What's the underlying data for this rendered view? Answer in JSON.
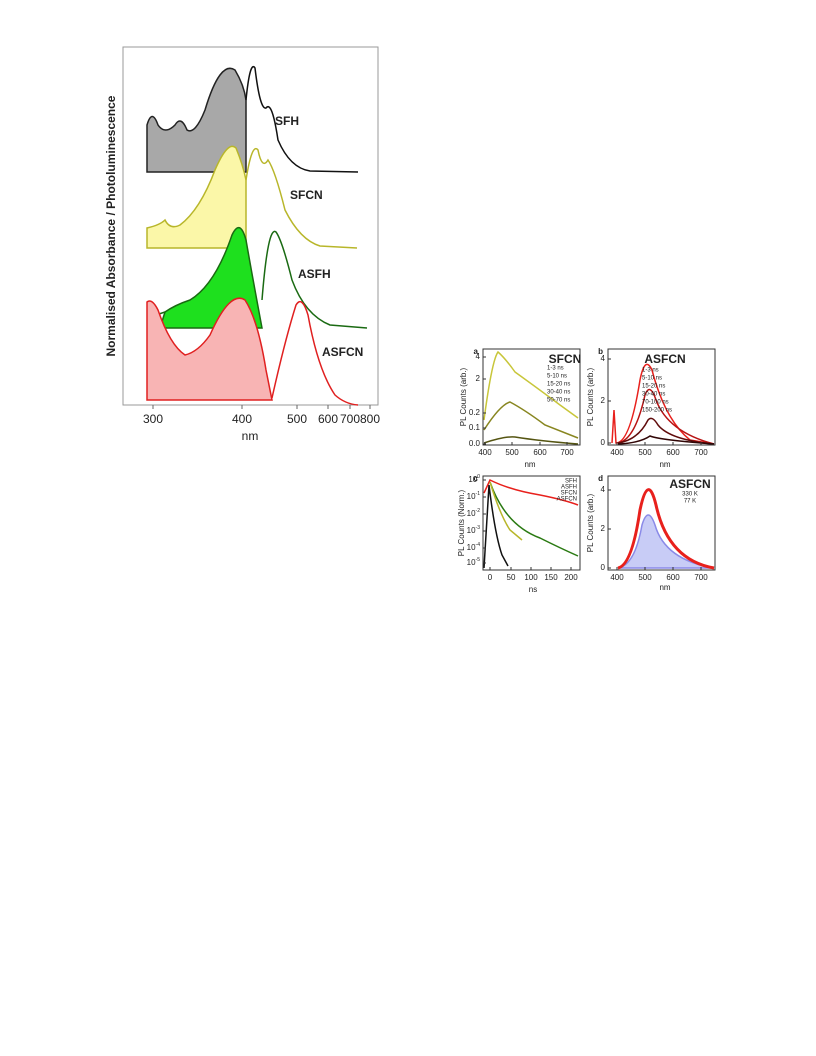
{
  "figure1": {
    "y_label": "Normalised Absorbance / Photoluminescence",
    "x_label": "nm",
    "x_ticks": [
      300,
      400,
      500,
      600,
      700,
      800
    ],
    "curve_labels": [
      "SFH",
      "SFCN",
      "ASFH",
      "ASFCN"
    ]
  },
  "figure2": {
    "panels": [
      {
        "letter": "a",
        "title": "SFCN",
        "title_color": "#b8b62a",
        "y_label": "PL Counts (arb.)",
        "x_label": "nm",
        "y_ticks": [
          4,
          2,
          0.2,
          0.1,
          "0.0"
        ],
        "x_ticks": [
          400,
          500,
          600,
          700
        ],
        "legend": [
          {
            "label": "1-3 ns",
            "color": "#c8c63a"
          },
          {
            "label": "5-10 ns",
            "color": "#a8a62a"
          },
          {
            "label": "15-20 ns",
            "color": "#888620"
          },
          {
            "label": "30-40 ns",
            "color": "#66651a"
          },
          {
            "label": "50-70 ns",
            "color": "#444412"
          }
        ]
      },
      {
        "letter": "b",
        "title": "ASFCN",
        "title_color": "#e8201c",
        "y_label": "PL Counts (arb.)",
        "x_label": "nm",
        "y_ticks": [
          4,
          2,
          0
        ],
        "x_ticks": [
          400,
          500,
          600,
          700
        ],
        "legend": [
          {
            "label": "1-3 ns",
            "color": "#e8201c"
          },
          {
            "label": "5-10 ns",
            "color": "#d01818"
          },
          {
            "label": "15-20 ns",
            "color": "#b81414"
          },
          {
            "label": "30-40 ns",
            "color": "#901010"
          },
          {
            "label": "70-100 ns",
            "color": "#600c0c"
          },
          {
            "label": "150-200 ns",
            "color": "#300606"
          }
        ]
      },
      {
        "letter": "c",
        "y_label": "PL Counts (Norm.)",
        "x_label": "ns",
        "y_ticks": [
          {
            "base": "10",
            "exponent": "0"
          },
          {
            "base": "10",
            "exponent": "-1"
          },
          {
            "base": "10",
            "exponent": "-2"
          },
          {
            "base": "10",
            "exponent": "-3"
          },
          {
            "base": "10",
            "exponent": "-4"
          },
          {
            "base": "10",
            "exponent": "-5"
          }
        ],
        "x_ticks": [
          0,
          50,
          100,
          150,
          200
        ],
        "legend": [
          {
            "label": "SFH",
            "color": "#111111"
          },
          {
            "label": "ASFH",
            "color": "#2a7a12"
          },
          {
            "label": "SFCN",
            "color": "#b8b62a"
          },
          {
            "label": "ASFCN",
            "color": "#e8201c"
          }
        ]
      },
      {
        "letter": "d",
        "title": "ASFCN",
        "title_color": "#e8201c",
        "y_label": "PL Counts (arb.)",
        "x_label": "nm",
        "y_ticks": [
          4,
          2,
          0
        ],
        "x_ticks": [
          400,
          500,
          600,
          700
        ],
        "legend": [
          {
            "label": "330 K",
            "color": "#e8201c"
          },
          {
            "label": "77 K",
            "color": "#8a8ae8"
          }
        ]
      }
    ]
  }
}
